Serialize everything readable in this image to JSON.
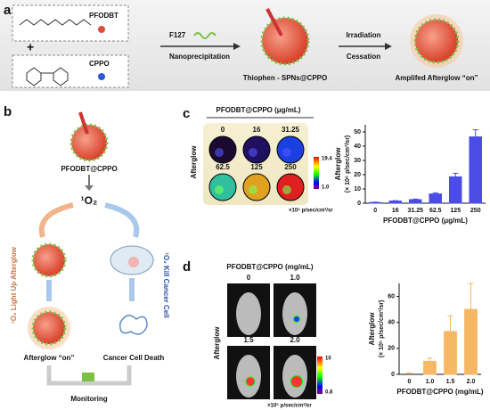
{
  "panel_labels": [
    "a",
    "b",
    "c",
    "d"
  ],
  "scheme_a": {
    "pfodbt": "PFODBT",
    "plus": "+",
    "cppo": "CPPO",
    "f127": "F127",
    "nanoprecipitation": "Nanoprecipitation",
    "spn": "Thiophen - SPNs@CPPO",
    "irradiation": "Irradiation",
    "cessation": "Cessation",
    "amplified": "Amplifed Afterglow “on”"
  },
  "panel_b": {
    "particle": "PFODBT@CPPO",
    "singlet": "¹O₂",
    "left_path": "¹O₂ Light Up Afterglow",
    "right_path": "¹O₂ Kill Cancer Cell",
    "afterglow_on": "Afterglow “on”",
    "cell_death": "Cancer Cell Death",
    "monitoring": "Monitoring"
  },
  "panel_c_images": {
    "title": "PFODBT@CPPO (μg/mL)",
    "row_label": "Afterglow",
    "concentrations": [
      "0",
      "16",
      "31.25",
      "62.5",
      "125",
      "250"
    ],
    "colorbar_max": "19.4",
    "colorbar_min": "1.0",
    "unit": "×10⁶ p/sec/cm²/sr"
  },
  "panel_d_images": {
    "title": "PFODBT@CPPO (mg/mL)",
    "row_label": "Afterglow",
    "concentrations": [
      "0",
      "1.0",
      "1.5",
      "2.0"
    ],
    "colorbar_max": "10",
    "colorbar_min": "0.8",
    "unit": "×10⁵ p/sec/cm²/sr"
  },
  "chart_data": [
    {
      "type": "bar",
      "ylabel": "Afterglow",
      "ylabel_unit": "(× 10⁶ p/sec/cm²/sr)",
      "xlabel": "PFODBT@CPPO (μg/mL)",
      "categories": [
        "0",
        "16",
        "31.25",
        "62.5",
        "125",
        "250"
      ],
      "values": [
        0.5,
        1.5,
        2.5,
        6.5,
        18.5,
        46.5
      ],
      "errors": [
        0.3,
        0.3,
        0.4,
        0.8,
        2.5,
        5
      ],
      "color": "#4b4be6",
      "ylim": [
        0,
        55
      ],
      "yticks": [
        0,
        10,
        20,
        30,
        40,
        50
      ]
    },
    {
      "type": "bar",
      "ylabel": "Afterglow",
      "ylabel_unit": "(× 10⁵ p/sec/cm²/sr)",
      "xlabel": "PFODBT@CPPO (mg/mL)",
      "categories": [
        "0",
        "1.0",
        "1.5",
        "2.0"
      ],
      "values": [
        0,
        10,
        33,
        50
      ],
      "errors": [
        1,
        2.5,
        12,
        20
      ],
      "color": "#f6b865",
      "ylim": [
        0,
        70
      ],
      "yticks": [
        0,
        20,
        40,
        60
      ]
    }
  ]
}
